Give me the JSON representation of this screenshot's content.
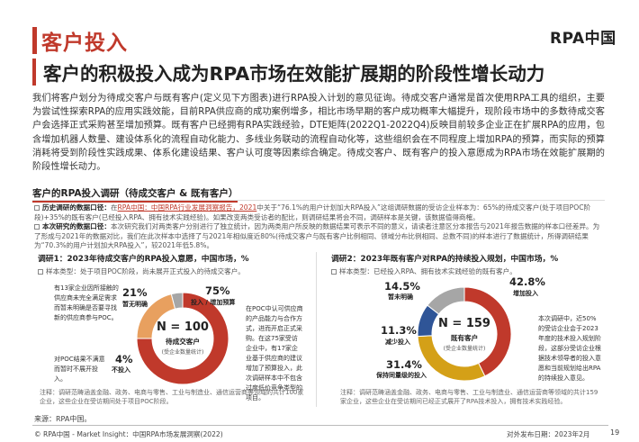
{
  "header": {
    "section_title": "客户投入",
    "logo_text": "RPA中国",
    "headline": "客户的积极投入成为RPA市场在效能扩展期的阶段性增长动力"
  },
  "intro": "我们将客户划分为待成交客户与既有客户(定义见下方图表)进行RPA投入计划的意见征询。待成交客户通常是首次使用RPA工具的组织，主要为尝试性探索RPA的应用实践效能，目前RPA供应商的成功案例增多，相比市场早期的客户成功概率大幅提升，现阶段市场中的多数待成交客户会选择正式采购甚至增加预算。既有客户已经拥有RPA实践经验，DTE矩阵(2022Q1-2022Q4)反映目前较多企业正在扩展RPA的应用，包含增加机器人数量、建设体系化的流程自动化能力、多线业务联动的流程自动化等，这些组织会在不同程度上增加RPA的预算，而实际的预算消耗将受到阶段性实践成果、体系化建设结果、客户认可度等因素综合确定。待成交客户、既有客户的投入意愿成为RPA市场在效能扩展期的阶段性增长动力。",
  "research": {
    "title": "客户的RPA投入调研（待成交客户 & 既有客户）",
    "history_label": "历史调研的数据口径：",
    "history_pre": "在",
    "history_link": "RPA中国：中国RPA行业发展洞察报告，2021",
    "history_post": "中关于“76.1%的用户计划加大RPA投入”这组调研数据的受访企业样本为：65%的待成交客户(处于项目POC阶段)+35%的既有客户(已经投入RPA、拥有技术实践经验)。如果改变两类受访者的配比，则调研结果将会不同，调研样本是关键，该数据值得商榷。",
    "current_label": "本次研究的数据口径：",
    "current_text": "本次研究我们对两类客户分别进行了独立统计，因为两类用户所反映的数据结果可表示不同的意义，请读者注意区分本报告与2021年报告数据的样本口径差异。为了形成与2021年的数据对比，我们在此次样本中选择了与2021年相似度近80%(待成交客户与既有客户比例相同、领域分布比例相同、总数不同)的样本进行了数据统计，所得调研结果为“70.3%的用户计划加大RPA投入”，较2021年低5.8%。"
  },
  "panel1": {
    "title": "调研1：2023年待成交客户的RPA投入意愿，中国市场，%",
    "sub": "样本类型：处于项目POC阶段，尚未展开正式投入的待成交客户。",
    "center_n": "N = 100",
    "center_label": "待成交客户",
    "center_sub": "(受企业数量统计)",
    "slices": [
      {
        "pct": "75%",
        "label": "投入 / 增加预算",
        "value": 75
      },
      {
        "pct": "21%",
        "label": "暂无明确",
        "value": 21
      },
      {
        "pct": "4%",
        "label": "不投入",
        "value": 4
      }
    ],
    "left_text_top": "有13家企业因所接触的供应商未完全满足需求而暂未明确是否要寻找新的供应商参与POC。",
    "left_text_bottom": "对POC结果不满意而暂时不展开投入。",
    "right_text": "在POC中认可供应商的产品能力与合作方式，进而开启正式采购。在这75家受访企业中，有17家企业基于供应商的建议增加了预算投入，此次调研样本中不包含过度低价竞争类型的项目。",
    "footnote": "注释：调研范畴涵盖金融、政务、电商与零售、工业与制造业、通信运营商等领域的共计100家企业，这些企业在受访期间处于项目POC阶段。"
  },
  "panel2": {
    "title": "调研2：2023年既有客户对RPA的持续投入规划，中国市场，%",
    "sub": "样本类型：已经投入RPA、拥有技术实践经验的既有客户。",
    "center_n": "N = 159",
    "center_label": "既有客户",
    "center_sub": "(受企业数量统计)",
    "slices": [
      {
        "pct": "42.8%",
        "label": "增加投入",
        "value": 42.8
      },
      {
        "pct": "31.4%",
        "label": "保持同量级的投入",
        "value": 31.4
      },
      {
        "pct": "11.3%",
        "label": "减少投入",
        "value": 11.3
      },
      {
        "pct": "14.5%",
        "label": "暂未明确",
        "value": 14.5
      }
    ],
    "right_text": "本次调研中，近50%的受访企业会于2023年度的技术投入规划阶段，这部分受访企业根据技术领导者的投入意愿和当前规划给出RPA的持续投入意见。",
    "footnote": "注释：调研范畴涵盖金融、政务、电商与零售、工业与制造业、通信运营商等领域的共计159家企业，这些企业在受访期间已经正式展开了RPA技术投入，拥有技术实践经验。"
  },
  "source": "来源：RPA中国。",
  "footer": {
    "left": "© RPA中国 - Market Insight：中国RPA市场发展洞察(2022)",
    "right": "对外发布日期：2023年2月",
    "page": "19"
  },
  "colors": {
    "accent": "#c0392b",
    "orange": "#e8a05f",
    "gold": "#d4a017",
    "blue": "#2f5597",
    "gray": "#a6a6a6"
  }
}
